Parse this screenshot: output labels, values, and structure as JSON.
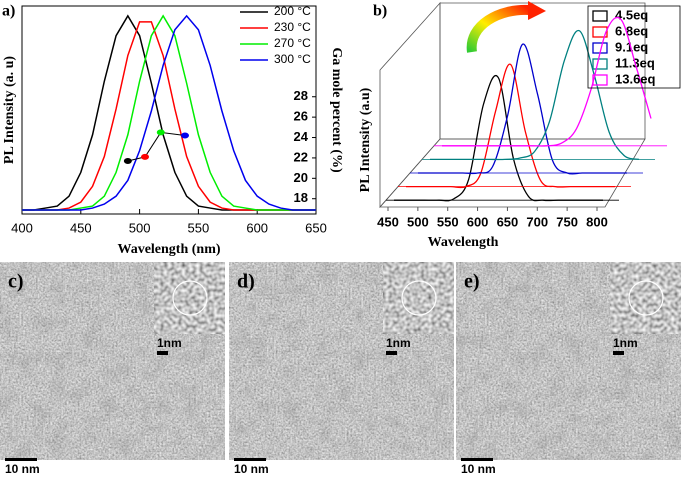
{
  "chart_data": [
    {
      "type": "line",
      "panel_label": "a)",
      "xlabel": "Wavelength (nm)",
      "ylabel": "PL Intensity (a. u)",
      "y2label": "Ga mole percent (%)",
      "x": [
        400,
        410,
        420,
        430,
        440,
        450,
        460,
        470,
        480,
        490,
        500,
        510,
        520,
        530,
        540,
        550,
        560,
        570,
        580,
        590,
        600,
        610,
        620,
        630,
        640,
        650
      ],
      "series": [
        {
          "name": "200 °C",
          "color": "#000000",
          "values": [
            0.02,
            0.02,
            0.03,
            0.04,
            0.09,
            0.21,
            0.4,
            0.67,
            0.9,
            1.0,
            0.9,
            0.66,
            0.4,
            0.21,
            0.09,
            0.04,
            0.03,
            0.02,
            0.02,
            0.02,
            0.02,
            0.02,
            0.02,
            0.02,
            0.02,
            0.02
          ]
        },
        {
          "name": "230 °C",
          "color": "#ff0000",
          "values": [
            0.02,
            0.02,
            0.02,
            0.02,
            0.03,
            0.06,
            0.14,
            0.29,
            0.53,
            0.8,
            0.97,
            0.97,
            0.8,
            0.53,
            0.29,
            0.14,
            0.06,
            0.03,
            0.02,
            0.02,
            0.02,
            0.02,
            0.02,
            0.02,
            0.02,
            0.02
          ]
        },
        {
          "name": "270 °C",
          "color": "#00ee00",
          "values": [
            0.02,
            0.02,
            0.02,
            0.02,
            0.02,
            0.03,
            0.04,
            0.09,
            0.21,
            0.4,
            0.67,
            0.9,
            1.0,
            0.9,
            0.66,
            0.4,
            0.21,
            0.09,
            0.04,
            0.03,
            0.02,
            0.02,
            0.02,
            0.02,
            0.02,
            0.02
          ]
        },
        {
          "name": "300 °C",
          "color": "#0000ee",
          "values": [
            0.02,
            0.02,
            0.02,
            0.02,
            0.02,
            0.02,
            0.03,
            0.05,
            0.09,
            0.17,
            0.32,
            0.52,
            0.75,
            0.93,
            1.0,
            0.93,
            0.75,
            0.52,
            0.32,
            0.17,
            0.09,
            0.05,
            0.03,
            0.02,
            0.02,
            0.02
          ]
        }
      ],
      "xlim": [
        400,
        650
      ],
      "xticks": [
        400,
        450,
        500,
        550,
        600,
        650
      ],
      "ylim": [
        0,
        1.05
      ],
      "y2lim": [
        16.5,
        36.9
      ],
      "y2ticks": [
        18,
        20,
        22,
        24,
        26,
        28
      ],
      "inset": {
        "axis": "y2",
        "x": [
          490,
          504.6,
          518,
          538.6
        ],
        "values": [
          21.7,
          22.1,
          24.5,
          24.2
        ],
        "colors": [
          "#000000",
          "#ff0000",
          "#00ee00",
          "#0000ee"
        ]
      },
      "legend": "upper right"
    },
    {
      "type": "waterfall",
      "panel_label": "b)",
      "xlabel": "Wavelength",
      "ylabel": "PL Intensity (a.u)",
      "x": [
        450,
        475,
        500,
        525,
        550,
        575,
        600,
        625,
        650,
        675,
        700,
        725,
        750,
        775,
        800
      ],
      "series": [
        {
          "name": "4.5eq",
          "color": "#000000",
          "values": [
            0,
            0,
            0,
            0,
            0.01,
            0.16,
            0.74,
            0.94,
            0.32,
            0.03,
            0,
            0,
            0,
            0,
            0
          ]
        },
        {
          "name": "6.8eq",
          "color": "#ff0000",
          "values": [
            0,
            0,
            0,
            0,
            0,
            0.1,
            0.58,
            0.94,
            0.42,
            0.05,
            0,
            0,
            0,
            0,
            0
          ]
        },
        {
          "name": "9.1eq",
          "color": "#0000cc",
          "values": [
            0,
            0,
            0,
            0,
            0,
            0.05,
            0.44,
            0.99,
            0.61,
            0.1,
            0,
            0,
            0,
            0,
            0
          ]
        },
        {
          "name": "11.3eq",
          "color": "#008080",
          "values": [
            0,
            0,
            0,
            0,
            0,
            0,
            0.01,
            0.06,
            0.29,
            0.76,
            0.99,
            0.65,
            0.21,
            0.03,
            0
          ]
        },
        {
          "name": "13.6eq",
          "color": "#ff00ff",
          "values": [
            0,
            0,
            0,
            0,
            0,
            0,
            0,
            0,
            0.02,
            0.13,
            0.44,
            0.88,
            0.97,
            0.61,
            0.21
          ]
        }
      ],
      "xlim": [
        450,
        800
      ],
      "xticks": [
        450,
        500,
        550,
        600,
        650,
        700,
        750,
        800
      ],
      "ylim": [
        0,
        1
      ],
      "legend": "upper right"
    }
  ],
  "micrographs": [
    {
      "label": "c)",
      "inset_scale": "1nm",
      "scale": "10 nm"
    },
    {
      "label": "d)",
      "inset_scale": "1nm",
      "scale": "10 nm"
    },
    {
      "label": "e)",
      "inset_scale": "1nm",
      "scale": "10 nm"
    }
  ]
}
